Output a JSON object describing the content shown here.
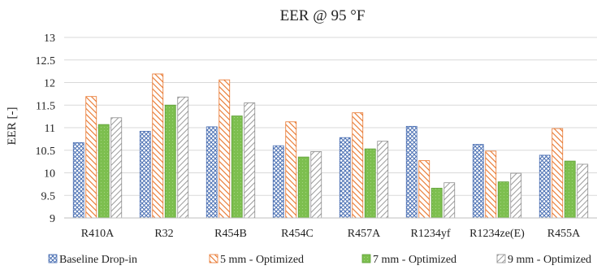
{
  "chart_data": {
    "type": "bar",
    "title": "EER @ 95 °F",
    "xlabel": "",
    "ylabel": "EER [-]",
    "ylim": [
      9,
      13
    ],
    "yticks": [
      "9",
      "9.5",
      "10",
      "10.5",
      "11",
      "11.5",
      "12",
      "12.5",
      "13"
    ],
    "grid": true,
    "legend_position": "bottom",
    "categories": [
      "R410A",
      "R32",
      "R454B",
      "R454C",
      "R457A",
      "R1234yf",
      "R1234ze(E)",
      "R455A"
    ],
    "series": [
      {
        "name": "Baseline Drop-in",
        "values": [
          10.67,
          10.92,
          11.02,
          10.6,
          10.78,
          11.03,
          10.63,
          10.39
        ],
        "color": "#4a6fb3",
        "pattern": "crosshatch"
      },
      {
        "name": "5 mm - Optimized",
        "values": [
          11.69,
          12.19,
          12.06,
          11.13,
          11.33,
          10.27,
          10.48,
          10.98
        ],
        "color": "#e8742a",
        "pattern": "diagonal-stripes"
      },
      {
        "name": "7 mm - Optimized",
        "values": [
          11.07,
          11.5,
          11.26,
          10.35,
          10.53,
          9.66,
          9.8,
          10.26
        ],
        "color": "#7dbf4f",
        "pattern": "solid"
      },
      {
        "name": "9 mm - Optimized",
        "values": [
          11.22,
          11.68,
          11.55,
          10.47,
          10.7,
          9.78,
          9.99,
          10.19
        ],
        "color": "#9a9a9a",
        "pattern": "diagonal-stripes"
      }
    ]
  }
}
